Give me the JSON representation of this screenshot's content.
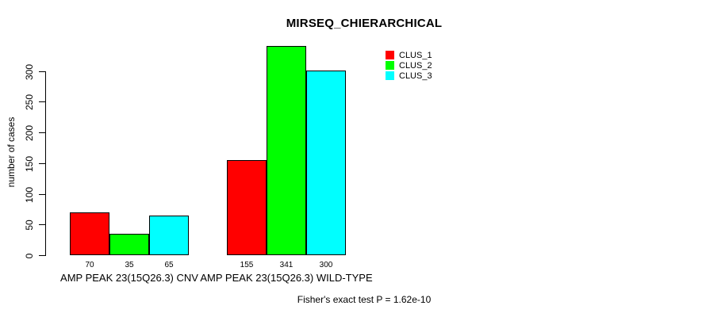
{
  "chart_data": {
    "type": "bar",
    "title": "MIRSEQ_CHIERARCHICAL",
    "ylabel": "number of cases",
    "xlabel": "",
    "ylim": [
      0,
      341
    ],
    "yticks": [
      0,
      50,
      100,
      150,
      200,
      250,
      300
    ],
    "grid": false,
    "legend_position": "top-right",
    "categories": [
      "AMP PEAK 23(15Q26.3) CNV",
      "AMP PEAK 23(15Q26.3) WILD-TYPE"
    ],
    "series": [
      {
        "name": "CLUS_1",
        "color": "#ff0000",
        "values": [
          70,
          155
        ]
      },
      {
        "name": "CLUS_2",
        "color": "#00ff00",
        "values": [
          35,
          341
        ]
      },
      {
        "name": "CLUS_3",
        "color": "#00ffff",
        "values": [
          65,
          300
        ]
      }
    ],
    "bar_value_labels": [
      [
        70,
        35,
        65
      ],
      [
        155,
        341,
        300
      ]
    ],
    "footnote": "Fisher's exact test P = 1.62e-10"
  },
  "colors": {
    "background": "#ffffff",
    "axis": "#000000",
    "text": "#000000",
    "bar_border": "#000000"
  }
}
